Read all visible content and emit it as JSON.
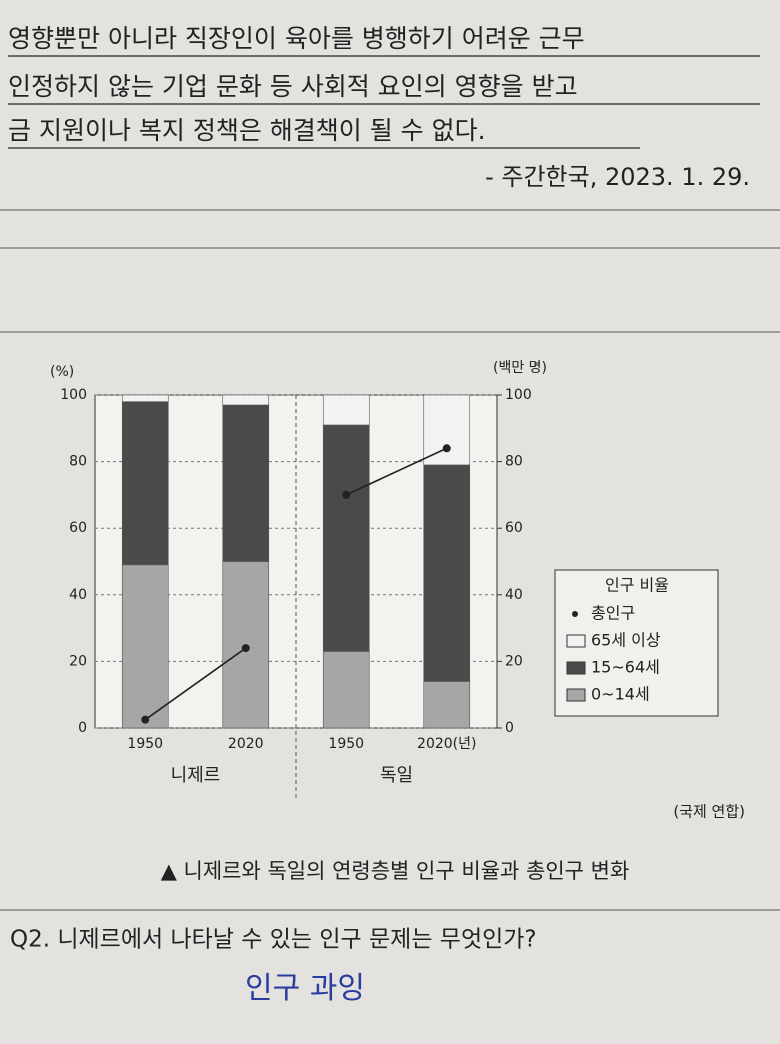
{
  "text_lines": [
    "영향뿐만 아니라 직장인이 육아를 병행하기 어려운 근무",
    "인정하지 않는 기업 문화 등 사회적 요인의 영향을 받고",
    "금 지원이나 복지 정책은 해결책이 될 수 없다."
  ],
  "citation": "- 주간한국, 2023. 1. 29.",
  "chart_data": {
    "type": "bar",
    "stacked": true,
    "categories": [
      "1950",
      "2020",
      "1950",
      "2020(년)"
    ],
    "groups": [
      {
        "name": "니제르",
        "members": [
          0,
          1
        ]
      },
      {
        "name": "독일",
        "members": [
          2,
          3
        ]
      }
    ],
    "y_label": "(%)",
    "y2_label": "(백만 명)",
    "ylim": [
      0,
      100
    ],
    "yticks": [
      0,
      20,
      40,
      60,
      80,
      100
    ],
    "y2lim": [
      0,
      100
    ],
    "y2ticks": [
      0,
      20,
      40,
      60,
      80,
      100
    ],
    "grid": true,
    "legend_title": "인구 비율",
    "legend": "right",
    "series": [
      {
        "name": "0~14세",
        "color": "#a6a6a6",
        "values": [
          49,
          50,
          23,
          14
        ]
      },
      {
        "name": "15~64세",
        "color": "#4a4a4a",
        "values": [
          49,
          47,
          68,
          65
        ]
      },
      {
        "name": "65세 이상",
        "color": "#f2f2f2",
        "values": [
          2,
          3,
          9,
          21
        ]
      },
      {
        "name": "총인구",
        "color": "#222222",
        "type": "line",
        "axis": "y2",
        "values": [
          2.5,
          24,
          70,
          84
        ]
      }
    ],
    "source": "(국제 연합)",
    "caption": "▲ 니제르와 독일의 연령층별 인구 비율과 총인구 변화"
  },
  "question": "Q2. 니제르에서 나타날 수 있는 인구 문제는 무엇인가?",
  "answer": "인구 과잉"
}
